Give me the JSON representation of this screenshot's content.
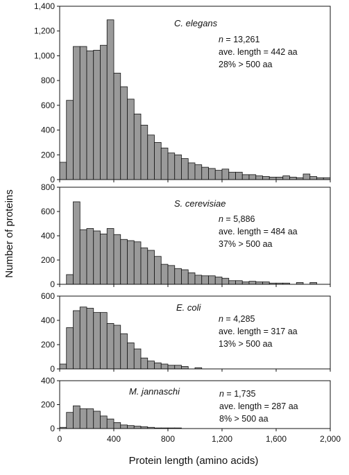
{
  "chart_data": {
    "type": "bar",
    "xlabel": "Protein length (amino acids)",
    "ylabel": "Number of proteins",
    "xlim": [
      0,
      2000
    ],
    "xticks": [
      0,
      400,
      800,
      1200,
      1600,
      2000
    ],
    "xtick_labels": [
      "0",
      "400",
      "800",
      "1,200",
      "1,600",
      "2,000"
    ],
    "bin_width": 50,
    "bin_starts": [
      0,
      50,
      100,
      150,
      200,
      250,
      300,
      350,
      400,
      450,
      500,
      550,
      600,
      650,
      700,
      750,
      800,
      850,
      900,
      950,
      1000,
      1050,
      1100,
      1150,
      1200,
      1250,
      1300,
      1350,
      1400,
      1450,
      1500,
      1550,
      1600,
      1650,
      1700,
      1750,
      1800,
      1850,
      1900,
      1950
    ],
    "panels": [
      {
        "species": "C. elegans",
        "n_label": "n",
        "n_value": " = 13,261",
        "ave_length": "ave. length = 442 aa",
        "pct_over": "28% > 500 aa",
        "ylim": [
          0,
          1400
        ],
        "yticks": [
          0,
          200,
          400,
          600,
          800,
          1000,
          1200,
          1400
        ],
        "ytick_labels": [
          "0",
          "200",
          "400",
          "600",
          "800",
          "1,000",
          "1,200",
          "1,400"
        ],
        "values": [
          140,
          640,
          1075,
          1075,
          1040,
          1045,
          1085,
          1290,
          860,
          750,
          650,
          530,
          440,
          360,
          300,
          255,
          215,
          200,
          170,
          135,
          120,
          100,
          90,
          75,
          85,
          60,
          60,
          40,
          40,
          30,
          25,
          20,
          20,
          30,
          20,
          15,
          45,
          25,
          15,
          15
        ]
      },
      {
        "species": "S. cerevisiae",
        "n_label": "n",
        "n_value": " = 5,886",
        "ave_length": "ave. length = 484 aa",
        "pct_over": "37% > 500 aa",
        "ylim": [
          0,
          800
        ],
        "yticks": [
          0,
          200,
          400,
          600,
          800
        ],
        "ytick_labels": [
          "0",
          "200",
          "400",
          "600",
          "800"
        ],
        "values": [
          0,
          80,
          680,
          450,
          460,
          440,
          415,
          460,
          410,
          370,
          360,
          350,
          300,
          280,
          230,
          165,
          155,
          130,
          120,
          95,
          75,
          70,
          70,
          60,
          50,
          30,
          30,
          20,
          25,
          20,
          20,
          10,
          10,
          10,
          0,
          15,
          0,
          15,
          0,
          0
        ]
      },
      {
        "species": "E. coli",
        "n_label": "n",
        "n_value": " = 4,285",
        "ave_length": "ave. length = 317 aa",
        "pct_over": "13% > 500 aa",
        "ylim": [
          0,
          600
        ],
        "yticks": [
          0,
          200,
          400,
          600
        ],
        "ytick_labels": [
          "0",
          "200",
          "400",
          "600"
        ],
        "values": [
          40,
          340,
          480,
          510,
          500,
          465,
          465,
          375,
          360,
          290,
          215,
          165,
          90,
          65,
          50,
          40,
          30,
          30,
          20,
          0,
          10,
          0,
          0,
          0,
          0,
          0,
          0,
          0,
          0,
          0,
          0,
          0,
          0,
          0,
          0,
          0,
          0,
          0,
          0,
          0
        ]
      },
      {
        "species": "M. jannaschi",
        "n_label": "n",
        "n_value": " = 1,735",
        "ave_length": "ave. length = 287 aa",
        "pct_over": "8% > 500 aa",
        "ylim": [
          0,
          400
        ],
        "yticks": [
          0,
          200,
          400
        ],
        "ytick_labels": [
          "0",
          "200",
          "400"
        ],
        "values": [
          10,
          135,
          190,
          165,
          165,
          145,
          105,
          80,
          50,
          30,
          25,
          20,
          15,
          10,
          5,
          5,
          5,
          5,
          0,
          0,
          0,
          0,
          0,
          0,
          0,
          0,
          0,
          0,
          0,
          0,
          0,
          0,
          0,
          0,
          0,
          0,
          0,
          0,
          0,
          0
        ]
      }
    ]
  }
}
